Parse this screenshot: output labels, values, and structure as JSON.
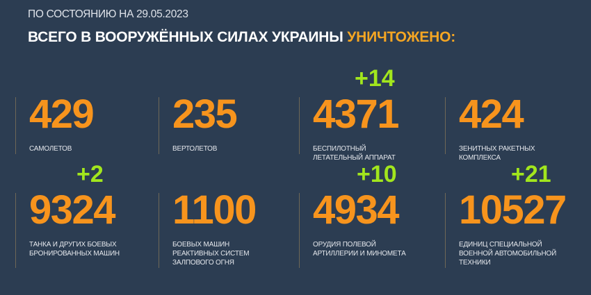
{
  "header": {
    "date": "ПО СОСТОЯНИЮ НА 29.05.2023",
    "title_main": "ВСЕГО В ВООРУЖЁННЫХ СИЛАХ УКРАИНЫ",
    "title_highlight": "УНИЧТОЖЕНО:"
  },
  "colors": {
    "background": "#2c3d52",
    "number": "#f7941d",
    "delta": "#a2e61d",
    "highlight": "#f5a623"
  },
  "stats": [
    {
      "value": "429",
      "label": [
        "САМОЛЕТОВ"
      ],
      "delta": ""
    },
    {
      "value": "235",
      "label": [
        "ВЕРТОЛЕТОВ"
      ],
      "delta": ""
    },
    {
      "value": "4371",
      "label": [
        "БЕСПИЛОТНЫЙ",
        "ЛЕТАТЕЛЬНЫЙ АППАРАТ"
      ],
      "delta": "+14"
    },
    {
      "value": "424",
      "label": [
        "ЗЕНИТНЫХ РАКЕТНЫХ",
        "КОМПЛЕКСА"
      ],
      "delta": ""
    },
    {
      "value": "9324",
      "label": [
        "ТАНКА И ДРУГИХ БОЕВЫХ",
        "БРОНИРОВАННЫХ МАШИН"
      ],
      "delta": "+2"
    },
    {
      "value": "1100",
      "label": [
        "БОЕВЫХ МАШИН",
        "РЕАКТИВНЫХ СИСТЕМ",
        "ЗАЛПОВОГО ОГНЯ"
      ],
      "delta": ""
    },
    {
      "value": "4934",
      "label": [
        "ОРУДИЯ ПОЛЕВОЙ",
        "АРТИЛЛЕРИИ И МИНОМЕТА"
      ],
      "delta": "+10"
    },
    {
      "value": "10527",
      "label": [
        "ЕДИНИЦ СПЕЦИАЛЬНОЙ",
        "ВОЕННОЙ АВТОМОБИЛЬНОЙ",
        "ТЕХНИКИ"
      ],
      "delta": "+21"
    }
  ]
}
